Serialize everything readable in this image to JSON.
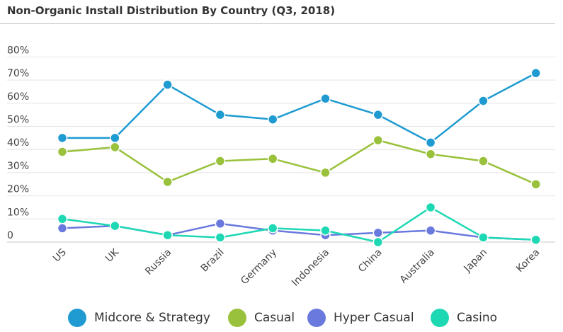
{
  "chart_data": {
    "type": "line",
    "title": "Non-Organic Install Distribution By Country (Q3, 2018)",
    "xlabel": "",
    "ylabel": "",
    "ylim": [
      0,
      80
    ],
    "yticks": [
      {
        "value": 0,
        "label": "0"
      },
      {
        "value": 10,
        "label": "10%"
      },
      {
        "value": 20,
        "label": "20%"
      },
      {
        "value": 30,
        "label": "30%"
      },
      {
        "value": 40,
        "label": "40%"
      },
      {
        "value": 50,
        "label": "50%"
      },
      {
        "value": 60,
        "label": "60%"
      },
      {
        "value": 70,
        "label": "70%"
      },
      {
        "value": 80,
        "label": "80%"
      }
    ],
    "grid": true,
    "legend_position": "bottom",
    "categories": [
      "US",
      "UK",
      "Russia",
      "Brazil",
      "Germany",
      "Indonesia",
      "China",
      "Australia",
      "Japan",
      "Korea"
    ],
    "series": [
      {
        "name": "Midcore & Strategy",
        "color": "#1f9bd1",
        "values": [
          45,
          45,
          68,
          55,
          53,
          62,
          55,
          43,
          61,
          73
        ]
      },
      {
        "name": "Casual",
        "color": "#99c13b",
        "values": [
          39,
          41,
          26,
          35,
          36,
          30,
          44,
          38,
          35,
          25
        ]
      },
      {
        "name": "Hyper Casual",
        "color": "#6979dd",
        "values": [
          6,
          7,
          3,
          8,
          5,
          3,
          4,
          5,
          2,
          1
        ]
      },
      {
        "name": "Casino",
        "color": "#1ed8b4",
        "values": [
          10,
          7,
          3,
          2,
          6,
          5,
          0,
          15,
          2,
          1
        ]
      }
    ]
  }
}
